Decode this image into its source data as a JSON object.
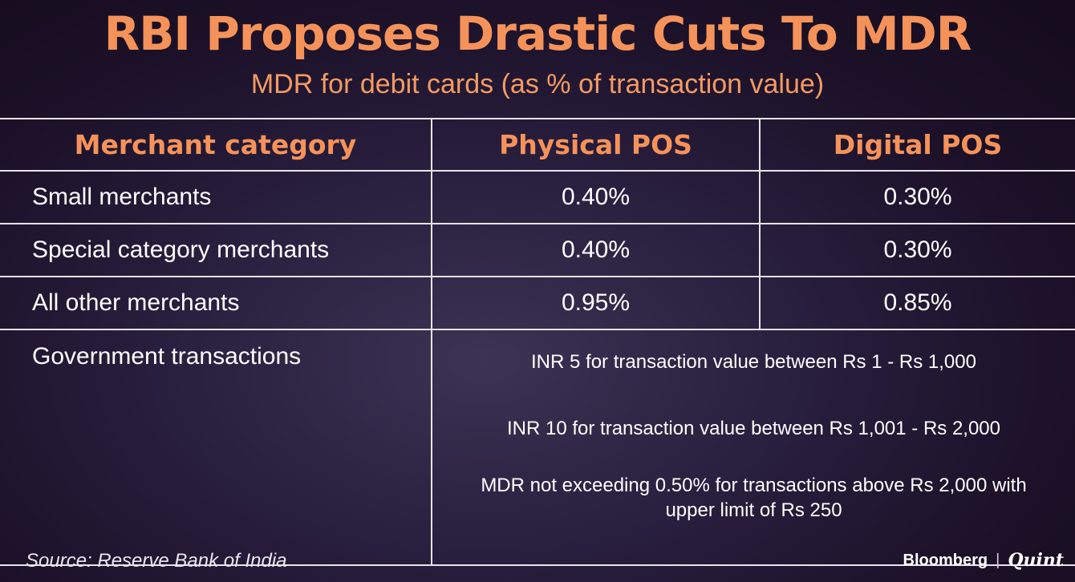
{
  "title": "RBI Proposes Drastic Cuts To MDR",
  "subtitle": "MDR for debit cards (as % of transaction value)",
  "table": {
    "headers": [
      "Merchant category",
      "Physical POS",
      "Digital POS"
    ],
    "rows": [
      {
        "category": "Small merchants",
        "physical": "0.40%",
        "digital": "0.30%"
      },
      {
        "category": "Special category merchants",
        "physical": "0.40%",
        "digital": "0.30%"
      },
      {
        "category": "All other merchants",
        "physical": "0.95%",
        "digital": "0.85%"
      }
    ],
    "government": {
      "category": "Government transactions",
      "notes": [
        "INR 5 for transaction value between Rs 1 - Rs 1,000",
        "INR 10 for transaction value between Rs 1,001 - Rs 2,000",
        "MDR not exceeding 0.50% for transactions above Rs 2,000 with upper limit of Rs 250"
      ]
    }
  },
  "source": "Source: Reserve Bank of India",
  "brand": {
    "left": "Bloomberg",
    "separator": "|",
    "right": "Quint"
  },
  "colors": {
    "accent": "#f5925a",
    "background": "#1c1128",
    "grid": "#e6e4ec"
  }
}
